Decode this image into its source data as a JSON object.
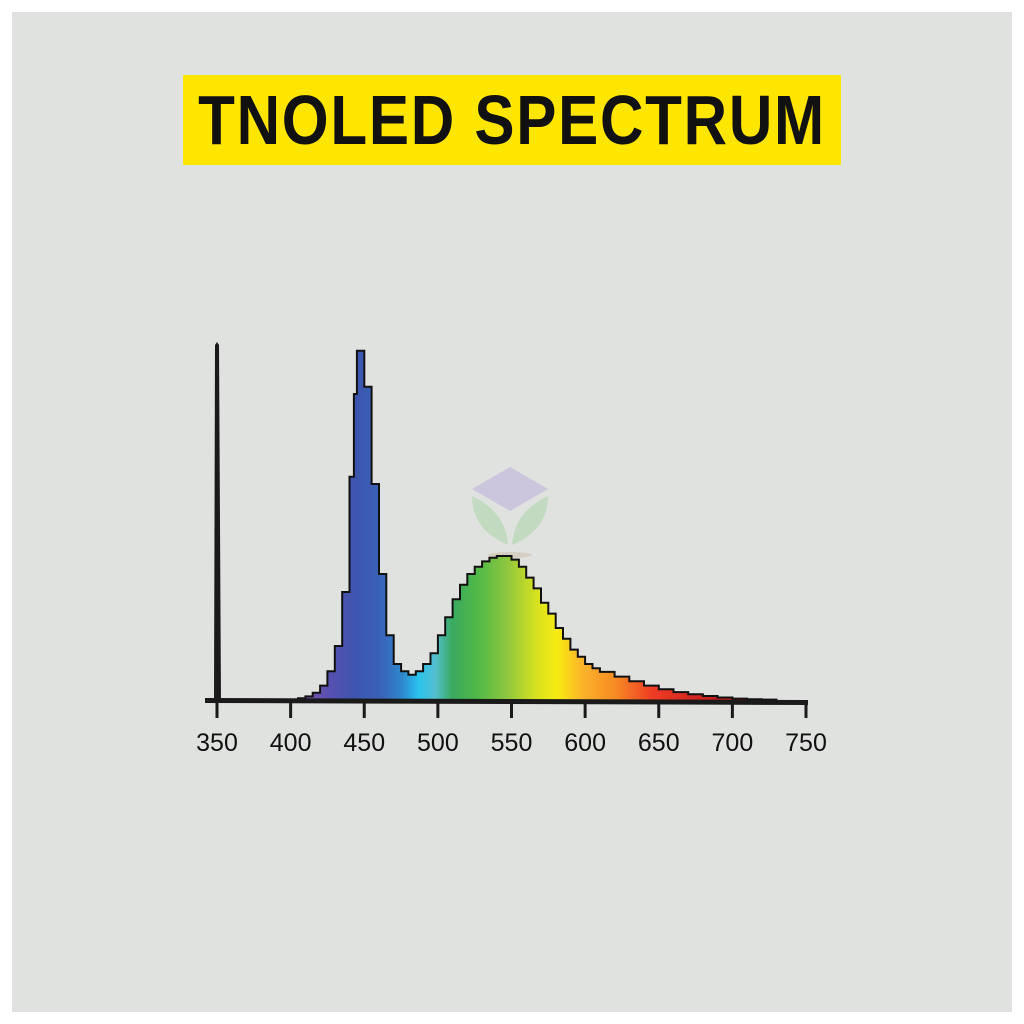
{
  "title": "TNOLED SPECTRUM",
  "colors": {
    "background": "#e0e2e0",
    "title_bar": "#ffe600",
    "title_text": "#111111",
    "axis": "#1a1a1a"
  },
  "chart_data": {
    "type": "area",
    "title": "TNOLED SPECTRUM",
    "xlabel": "",
    "ylabel": "",
    "xlim": [
      350,
      750
    ],
    "ylim": [
      0,
      1
    ],
    "grid": false,
    "fill": "wavelength-colored spectrum gradient",
    "x_ticks": [
      350,
      400,
      450,
      500,
      550,
      600,
      650,
      700,
      750
    ],
    "x": [
      400,
      405,
      410,
      415,
      420,
      425,
      430,
      435,
      440,
      443,
      445,
      447,
      450,
      455,
      460,
      465,
      470,
      475,
      480,
      485,
      490,
      495,
      500,
      505,
      510,
      515,
      520,
      525,
      530,
      535,
      540,
      545,
      550,
      555,
      560,
      565,
      570,
      575,
      580,
      585,
      590,
      595,
      600,
      605,
      610,
      620,
      630,
      640,
      650,
      660,
      670,
      680,
      690,
      700,
      710,
      720,
      730
    ],
    "y": [
      0.0,
      0.005,
      0.01,
      0.02,
      0.04,
      0.08,
      0.15,
      0.3,
      0.62,
      0.85,
      0.97,
      0.97,
      0.87,
      0.6,
      0.35,
      0.18,
      0.1,
      0.08,
      0.07,
      0.08,
      0.1,
      0.13,
      0.18,
      0.23,
      0.28,
      0.32,
      0.35,
      0.37,
      0.385,
      0.395,
      0.4,
      0.4,
      0.39,
      0.37,
      0.34,
      0.31,
      0.27,
      0.24,
      0.2,
      0.17,
      0.14,
      0.12,
      0.1,
      0.088,
      0.078,
      0.065,
      0.052,
      0.04,
      0.03,
      0.022,
      0.016,
      0.011,
      0.007,
      0.004,
      0.002,
      0.001,
      0.0
    ]
  }
}
